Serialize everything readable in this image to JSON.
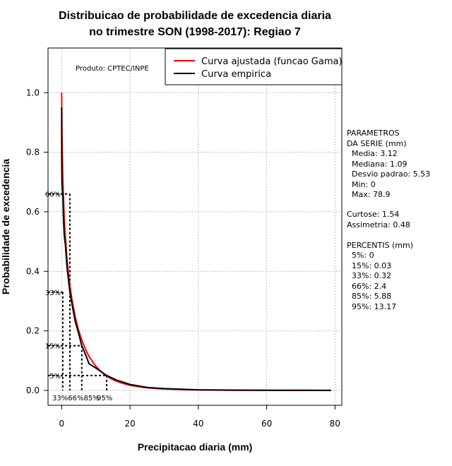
{
  "chart_data": {
    "type": "line",
    "title_line1": "Distribuicao de probabilidade de excedencia diaria",
    "title_line2": "no trimestre SON (1998-2017): Regiao 7",
    "xlabel": "Precipitacao diaria (mm)",
    "ylabel": "Probabilidade de excedencia",
    "xlim": [
      -4,
      82
    ],
    "ylim": [
      -0.05,
      1.15
    ],
    "xticks": [
      0,
      20,
      40,
      60,
      80
    ],
    "yticks": [
      "0.0",
      "0.2",
      "0.4",
      "0.6",
      "0.8",
      "1.0"
    ],
    "grid": true,
    "product_label": "Produto: CPTEC/INPE",
    "legend": [
      {
        "label": "Curva ajustada (funcao Gama)",
        "color": "#ff0000"
      },
      {
        "label": "Curva empirica",
        "color": "#000000"
      }
    ],
    "series": [
      {
        "name": "Curva ajustada (funcao Gama)",
        "color": "#ff0000",
        "x": [
          0,
          0.05,
          0.1,
          0.2,
          0.3,
          0.5,
          0.75,
          1,
          1.5,
          2,
          2.5,
          3,
          4,
          5,
          6,
          7,
          8,
          10,
          12,
          14,
          16,
          18,
          20,
          24,
          28,
          32,
          36,
          40,
          50,
          60,
          70,
          78.9
        ],
        "y": [
          1.0,
          0.93,
          0.87,
          0.79,
          0.73,
          0.65,
          0.58,
          0.53,
          0.45,
          0.39,
          0.345,
          0.305,
          0.245,
          0.2,
          0.165,
          0.137,
          0.114,
          0.081,
          0.058,
          0.042,
          0.031,
          0.023,
          0.017,
          0.01,
          0.006,
          0.004,
          0.0025,
          0.0015,
          0.0005,
          0.0002,
          0.0001,
          0.0
        ]
      },
      {
        "name": "Curva empirica",
        "color": "#000000",
        "x": [
          0,
          0.02,
          0.05,
          0.1,
          0.2,
          0.32,
          0.5,
          0.75,
          1.09,
          1.5,
          2,
          2.4,
          3,
          4,
          5,
          5.88,
          7,
          8,
          10,
          13.17,
          16,
          20,
          25,
          30,
          35,
          40,
          50,
          60,
          70,
          78.9
        ],
        "y": [
          0.95,
          0.78,
          0.72,
          0.69,
          0.67,
          0.66,
          0.58,
          0.52,
          0.49,
          0.42,
          0.37,
          0.33,
          0.29,
          0.23,
          0.19,
          0.15,
          0.12,
          0.09,
          0.075,
          0.05,
          0.035,
          0.02,
          0.01,
          0.006,
          0.004,
          0.002,
          0.001,
          0.0005,
          0.0002,
          0.0
        ]
      }
    ],
    "percentile_markers": [
      {
        "label": "66%",
        "x": 2.4,
        "y": 0.66
      },
      {
        "label": "33%",
        "x": 0.32,
        "y": 0.33
      },
      {
        "label": "15%",
        "x": 0.03,
        "y": 0.15
      },
      {
        "label": "5%",
        "x": 0,
        "y": 0.05
      }
    ],
    "percentile_drops": [
      {
        "x": 0.32,
        "y": 0.33
      },
      {
        "x": 2.4,
        "y": 0.66
      },
      {
        "x": 5.88,
        "y": 0.15
      },
      {
        "x": 13.17,
        "y": 0.05
      }
    ],
    "bottom_labels": "33%66%85%",
    "bottom_label_95": "95%"
  },
  "stats": {
    "header1": "PARAMETROS",
    "header2": "DA SERIE (mm)",
    "media": "Media: 3.12",
    "mediana": "Mediana: 1.09",
    "desvio": "Desvio padrao: 5.53",
    "min": "Min: 0",
    "max": "Max: 78.9",
    "curtose": "Curtose: 1.54",
    "assimetria": "Assimetria: 0.48",
    "perc_header": "PERCENTIS (mm)",
    "p5": "5%: 0",
    "p15": "15%: 0.03",
    "p33": "33%: 0.32",
    "p66": "66%: 2.4",
    "p85": "85%: 5.88",
    "p95": "95%: 13.17"
  }
}
